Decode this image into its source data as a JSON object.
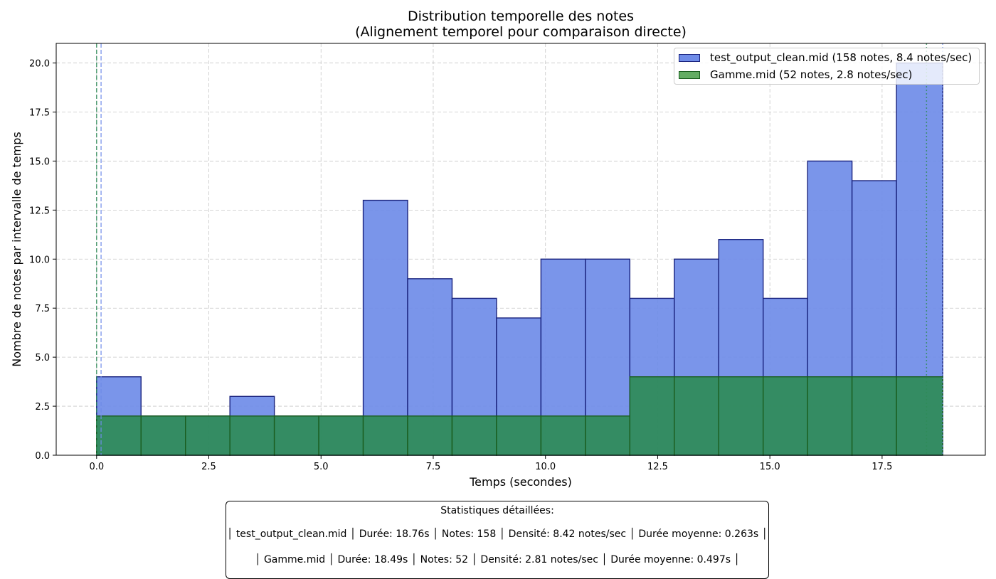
{
  "chart_data": {
    "type": "bar",
    "title": "Distribution temporelle des notes",
    "subtitle": "(Alignement temporel pour comparaison directe)",
    "xlabel": "Temps (secondes)",
    "ylabel": "Nombre de notes par intervalle de temps",
    "xlim": [
      -0.9,
      19.8
    ],
    "ylim": [
      0,
      21
    ],
    "xticks": [
      0.0,
      2.5,
      5.0,
      7.5,
      10.0,
      12.5,
      15.0,
      17.5
    ],
    "yticks": [
      0.0,
      2.5,
      5.0,
      7.5,
      10.0,
      12.5,
      15.0,
      17.5,
      20.0
    ],
    "grid": true,
    "legend_position": "top-right",
    "series": [
      {
        "name": "test_output_clean.mid (158 notes, 8.4 notes/sec)",
        "color": "#6f8ce8",
        "edge_color": "#1a237e",
        "bin_edges": [
          0.0,
          0.99,
          1.98,
          2.97,
          3.96,
          4.95,
          5.94,
          6.93,
          7.92,
          8.91,
          9.9,
          10.89,
          11.88,
          12.87,
          13.86,
          14.85,
          15.84,
          16.83,
          17.82,
          18.85
        ],
        "values": [
          4,
          2,
          2,
          3,
          2,
          2,
          13,
          9,
          8,
          7,
          10,
          10,
          8,
          10,
          11,
          8,
          15,
          14,
          20
        ]
      },
      {
        "name": "Gamme.mid (52 notes, 2.8 notes/sec)",
        "color": "#2e8b57",
        "edge_color": "#1b5e20",
        "bin_edges": [
          0.0,
          0.99,
          1.98,
          2.97,
          3.96,
          4.95,
          5.94,
          6.93,
          7.92,
          8.91,
          9.9,
          10.89,
          11.88,
          12.87,
          13.86,
          14.85,
          15.84,
          16.83,
          17.82,
          18.85
        ],
        "values": [
          2,
          2,
          2,
          2,
          2,
          2,
          2,
          2,
          2,
          2,
          2,
          2,
          4,
          4,
          4,
          4,
          4,
          4,
          4
        ]
      }
    ],
    "vlines": [
      {
        "x": 0.0,
        "color": "#2e8b57",
        "style": "dashed"
      },
      {
        "x": 0.1,
        "color": "#6f8ce8",
        "style": "dashed"
      },
      {
        "x": 18.49,
        "color": "#2e8b57",
        "style": "dotted"
      },
      {
        "x": 18.85,
        "color": "#6f8ce8",
        "style": "dotted"
      }
    ]
  },
  "stats": {
    "title": "Statistiques détaillées:",
    "line1": "│ test_output_clean.mid │ Durée: 18.76s │ Notes: 158 │ Densité: 8.42 notes/sec │ Durée moyenne: 0.263s │",
    "line2": "│ Gamme.mid │ Durée: 18.49s │ Notes: 52 │ Densité: 2.81 notes/sec │ Durée moyenne: 0.497s │"
  }
}
